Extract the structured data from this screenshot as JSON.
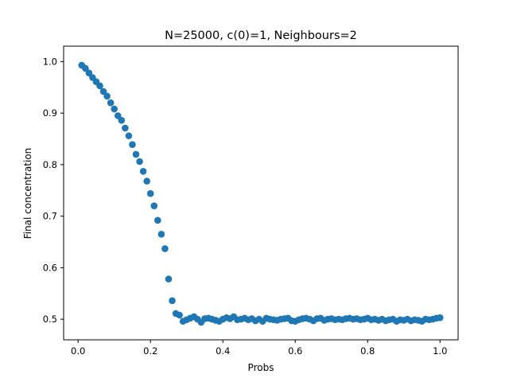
{
  "chart_data": {
    "type": "scatter",
    "title": "N=25000, c(0)=1, Neighbours=2",
    "xlabel": "Probs",
    "ylabel": "Final concentration",
    "xlim": [
      -0.04,
      1.05
    ],
    "ylim": [
      0.46,
      1.03
    ],
    "xticks": [
      0.0,
      0.2,
      0.4,
      0.6,
      0.8,
      1.0
    ],
    "xtick_labels": [
      "0.0",
      "0.2",
      "0.4",
      "0.6",
      "0.8",
      "1.0"
    ],
    "yticks": [
      0.5,
      0.6,
      0.7,
      0.8,
      0.9,
      1.0
    ],
    "ytick_labels": [
      "0.5",
      "0.6",
      "0.7",
      "0.8",
      "0.9",
      "1.0"
    ],
    "grid": false,
    "marker_color": "#1f77b4",
    "series": [
      {
        "x": [
          0.01,
          0.02,
          0.03,
          0.04,
          0.05,
          0.06,
          0.07,
          0.08,
          0.09,
          0.1,
          0.11,
          0.12,
          0.13,
          0.14,
          0.15,
          0.16,
          0.17,
          0.18,
          0.19,
          0.2,
          0.21,
          0.22,
          0.23,
          0.24,
          0.25,
          0.26,
          0.27,
          0.28,
          0.29,
          0.3,
          0.31,
          0.32,
          0.33,
          0.34,
          0.35,
          0.36,
          0.37,
          0.38,
          0.39,
          0.4,
          0.41,
          0.42,
          0.43,
          0.44,
          0.45,
          0.46,
          0.47,
          0.48,
          0.49,
          0.5,
          0.51,
          0.52,
          0.53,
          0.54,
          0.55,
          0.56,
          0.57,
          0.58,
          0.59,
          0.6,
          0.61,
          0.62,
          0.63,
          0.64,
          0.65,
          0.66,
          0.67,
          0.68,
          0.69,
          0.7,
          0.71,
          0.72,
          0.73,
          0.74,
          0.75,
          0.76,
          0.77,
          0.78,
          0.79,
          0.8,
          0.81,
          0.82,
          0.83,
          0.84,
          0.85,
          0.86,
          0.87,
          0.88,
          0.89,
          0.9,
          0.91,
          0.92,
          0.93,
          0.94,
          0.95,
          0.96,
          0.97,
          0.98,
          0.99,
          1.0
        ],
        "y": [
          0.993,
          0.987,
          0.978,
          0.969,
          0.961,
          0.953,
          0.942,
          0.933,
          0.92,
          0.908,
          0.895,
          0.886,
          0.871,
          0.856,
          0.839,
          0.82,
          0.806,
          0.787,
          0.768,
          0.744,
          0.72,
          0.692,
          0.665,
          0.637,
          0.578,
          0.536,
          0.511,
          0.508,
          0.496,
          0.499,
          0.502,
          0.505,
          0.5,
          0.494,
          0.501,
          0.502,
          0.5,
          0.498,
          0.496,
          0.5,
          0.503,
          0.501,
          0.505,
          0.499,
          0.5,
          0.502,
          0.499,
          0.501,
          0.497,
          0.5,
          0.496,
          0.502,
          0.5,
          0.499,
          0.498,
          0.5,
          0.501,
          0.502,
          0.497,
          0.496,
          0.499,
          0.501,
          0.502,
          0.5,
          0.497,
          0.501,
          0.502,
          0.498,
          0.5,
          0.501,
          0.499,
          0.5,
          0.499,
          0.501,
          0.502,
          0.5,
          0.501,
          0.499,
          0.5,
          0.502,
          0.499,
          0.5,
          0.498,
          0.5,
          0.497,
          0.499,
          0.5,
          0.496,
          0.499,
          0.498,
          0.5,
          0.497,
          0.499,
          0.498,
          0.496,
          0.5,
          0.499,
          0.5,
          0.502,
          0.503
        ]
      }
    ]
  }
}
